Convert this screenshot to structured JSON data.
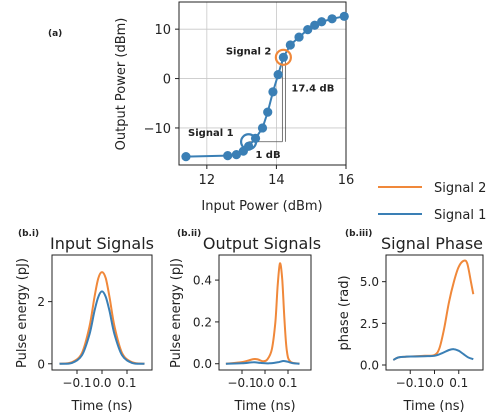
{
  "colors": {
    "signal1": "#3a7fb5",
    "signal2": "#f0883a",
    "grid": "#c8c8c8"
  },
  "legend": {
    "placement": "right",
    "entries": [
      "Signal 2",
      "Signal 1"
    ]
  },
  "chart_data": [
    {
      "id": "a",
      "type": "line",
      "panel_label": "(a)",
      "title": "",
      "xlabel": "Input Power (dBm)",
      "ylabel": "Output Power (dBm)",
      "xlim": [
        11.2,
        16
      ],
      "ylim": [
        -17.5,
        15.5
      ],
      "xticks": [
        12,
        14,
        16
      ],
      "yticks": [
        -10,
        0,
        10
      ],
      "grid": true,
      "series": [
        {
          "x": [
            11.4,
            12.6,
            12.85,
            13.05,
            13.2,
            13.4,
            13.6,
            13.75,
            13.9,
            14.05,
            14.2,
            14.4,
            14.65,
            14.9,
            15.1,
            15.3,
            15.6,
            15.95
          ],
          "y": [
            -15.8,
            -15.6,
            -15.4,
            -14.7,
            -13.7,
            -12.1,
            -10.0,
            -6.8,
            -2.7,
            0.8,
            4.3,
            6.8,
            8.4,
            9.9,
            10.8,
            11.5,
            12.1,
            12.6
          ]
        }
      ],
      "annotations": [
        {
          "text": "Signal 1",
          "series": "signal1",
          "x": 13.2,
          "y": -12.8
        },
        {
          "text": "Signal 2",
          "series": "signal2",
          "x": 14.2,
          "y": 4.3
        },
        {
          "text": "1 dB"
        },
        {
          "text": "17.4 dB"
        }
      ]
    },
    {
      "id": "b.i",
      "type": "line",
      "panel_label": "(b.i)",
      "title": "Input Signals",
      "xlabel": "Time (ns)",
      "ylabel": "Pulse energy (pJ)",
      "xlim": [
        -0.2,
        0.2
      ],
      "ylim": [
        -0.2,
        3.5
      ],
      "xticks": [
        -0.1,
        0.0,
        0.1
      ],
      "xtick_labels": [
        "−0.1",
        "0.0",
        "0.1"
      ],
      "yticks": [
        0,
        2
      ],
      "series": [
        {
          "name": "Signal 2",
          "x": [
            -0.17,
            -0.12,
            -0.08,
            -0.05,
            -0.03,
            -0.015,
            0,
            0.015,
            0.03,
            0.05,
            0.08,
            0.12,
            0.17
          ],
          "y": [
            0.0,
            0.05,
            0.35,
            1.2,
            2.15,
            2.75,
            2.95,
            2.75,
            2.15,
            1.2,
            0.35,
            0.05,
            0.0
          ]
        },
        {
          "name": "Signal 1",
          "x": [
            -0.17,
            -0.12,
            -0.08,
            -0.05,
            -0.03,
            -0.015,
            0,
            0.015,
            0.03,
            0.05,
            0.08,
            0.12,
            0.17
          ],
          "y": [
            0.0,
            0.03,
            0.28,
            0.95,
            1.7,
            2.15,
            2.33,
            2.15,
            1.7,
            0.95,
            0.28,
            0.03,
            0.0
          ]
        }
      ]
    },
    {
      "id": "b.ii",
      "type": "line",
      "panel_label": "(b.ii)",
      "title": "Output Signals",
      "xlabel": "Time (ns)",
      "ylabel": "Pulse energy (pJ)",
      "xlim": [
        -0.2,
        0.2
      ],
      "ylim": [
        -0.03,
        0.52
      ],
      "xticks": [
        -0.1,
        0.0,
        0.1
      ],
      "xtick_labels": [
        "−0.1",
        "0.0",
        "0.1"
      ],
      "yticks": [
        0.0,
        0.2,
        0.4
      ],
      "series": [
        {
          "name": "Signal 2",
          "x": [
            -0.17,
            -0.1,
            -0.05,
            -0.03,
            -0.01,
            0.01,
            0.03,
            0.045,
            0.055,
            0.065,
            0.075,
            0.085,
            0.095,
            0.11,
            0.15
          ],
          "y": [
            0.0,
            0.008,
            0.022,
            0.02,
            0.012,
            0.02,
            0.07,
            0.2,
            0.37,
            0.48,
            0.4,
            0.2,
            0.06,
            0.01,
            0.0
          ]
        },
        {
          "name": "Signal 1",
          "x": [
            -0.17,
            -0.1,
            -0.05,
            -0.02,
            0.02,
            0.06,
            0.08,
            0.1,
            0.12,
            0.15
          ],
          "y": [
            0.0,
            0.002,
            0.007,
            0.004,
            0.002,
            0.008,
            0.013,
            0.009,
            0.003,
            0.0
          ]
        }
      ]
    },
    {
      "id": "b.iii",
      "type": "line",
      "panel_label": "(b.iii)",
      "title": "Signal Phase",
      "xlabel": "Time (ns)",
      "ylabel": "phase (rad)",
      "xlim": [
        -0.2,
        0.2
      ],
      "ylim": [
        -0.3,
        6.6
      ],
      "xticks": [
        -0.1,
        0.0,
        0.1
      ],
      "xtick_labels": [
        "−0.1",
        "0.0",
        "0.1"
      ],
      "yticks": [
        0.0,
        2.5,
        5.0
      ],
      "series": [
        {
          "name": "Signal 2",
          "x": [
            -0.17,
            -0.15,
            -0.12,
            -0.08,
            -0.04,
            0.0,
            0.02,
            0.04,
            0.06,
            0.08,
            0.1,
            0.12,
            0.135,
            0.15,
            0.16
          ],
          "y": [
            0.3,
            0.45,
            0.5,
            0.52,
            0.55,
            0.6,
            1.0,
            2.2,
            3.8,
            5.0,
            5.9,
            6.25,
            6.1,
            5.0,
            4.25
          ]
        },
        {
          "name": "Signal 1",
          "x": [
            -0.17,
            -0.15,
            -0.12,
            -0.08,
            -0.04,
            0.0,
            0.03,
            0.06,
            0.08,
            0.1,
            0.12,
            0.14,
            0.16
          ],
          "y": [
            0.3,
            0.45,
            0.5,
            0.51,
            0.53,
            0.55,
            0.7,
            0.9,
            0.95,
            0.85,
            0.65,
            0.45,
            0.35
          ]
        }
      ]
    }
  ]
}
